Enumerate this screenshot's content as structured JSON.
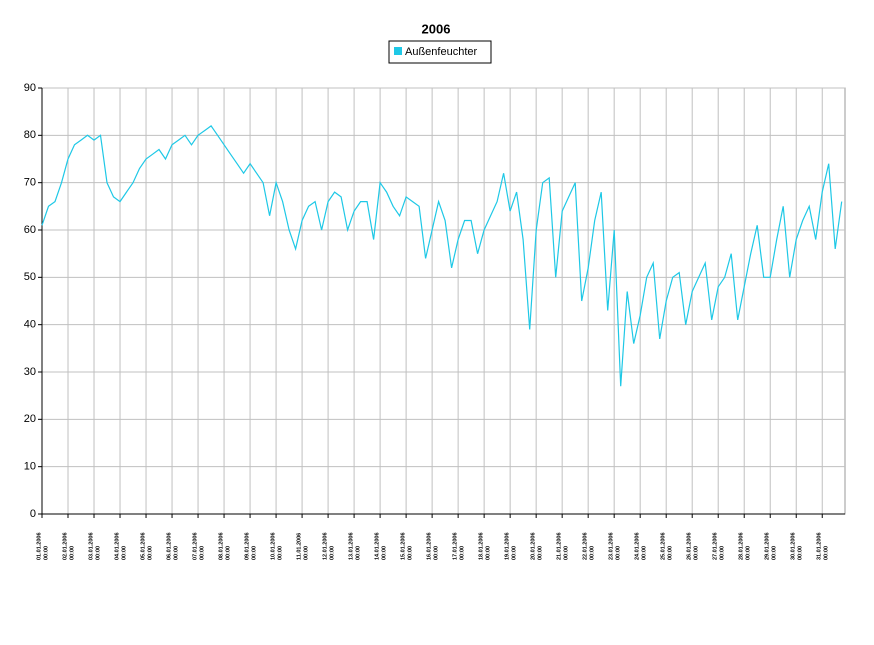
{
  "chart_data": {
    "type": "line",
    "title": "2006",
    "x": [
      "01.01.2006 00:00",
      "01.01.2006 06:00",
      "01.01.2006 12:00",
      "01.01.2006 18:00",
      "02.01.2006 00:00",
      "02.01.2006 06:00",
      "02.01.2006 12:00",
      "02.01.2006 18:00",
      "03.01.2006 00:00",
      "03.01.2006 06:00",
      "03.01.2006 12:00",
      "03.01.2006 18:00",
      "04.01.2006 00:00",
      "04.01.2006 06:00",
      "04.01.2006 12:00",
      "04.01.2006 18:00",
      "05.01.2006 00:00",
      "05.01.2006 06:00",
      "05.01.2006 12:00",
      "05.01.2006 18:00",
      "06.01.2006 00:00",
      "06.01.2006 06:00",
      "06.01.2006 12:00",
      "06.01.2006 18:00",
      "07.01.2006 00:00",
      "07.01.2006 06:00",
      "07.01.2006 12:00",
      "07.01.2006 18:00",
      "08.01.2006 00:00",
      "08.01.2006 06:00",
      "08.01.2006 12:00",
      "08.01.2006 18:00",
      "09.01.2006 00:00",
      "09.01.2006 06:00",
      "09.01.2006 12:00",
      "09.01.2006 18:00",
      "10.01.2006 00:00",
      "10.01.2006 06:00",
      "10.01.2006 12:00",
      "10.01.2006 18:00",
      "11.01.2006 00:00",
      "11.01.2006 06:00",
      "11.01.2006 12:00",
      "11.01.2006 18:00",
      "12.01.2006 00:00",
      "12.01.2006 06:00",
      "12.01.2006 12:00",
      "12.01.2006 18:00",
      "13.01.2006 00:00",
      "13.01.2006 06:00",
      "13.01.2006 12:00",
      "13.01.2006 18:00",
      "14.01.2006 00:00",
      "14.01.2006 06:00",
      "14.01.2006 12:00",
      "14.01.2006 18:00",
      "15.01.2006 00:00",
      "15.01.2006 06:00",
      "15.01.2006 12:00",
      "15.01.2006 18:00",
      "16.01.2006 00:00",
      "16.01.2006 06:00",
      "16.01.2006 12:00",
      "16.01.2006 18:00",
      "17.01.2006 00:00",
      "17.01.2006 06:00",
      "17.01.2006 12:00",
      "17.01.2006 18:00",
      "18.01.2006 00:00",
      "18.01.2006 06:00",
      "18.01.2006 12:00",
      "18.01.2006 18:00",
      "19.01.2006 00:00",
      "19.01.2006 06:00",
      "19.01.2006 12:00",
      "19.01.2006 18:00",
      "20.01.2006 00:00",
      "20.01.2006 06:00",
      "20.01.2006 12:00",
      "20.01.2006 18:00",
      "21.01.2006 00:00",
      "21.01.2006 06:00",
      "21.01.2006 12:00",
      "21.01.2006 18:00",
      "22.01.2006 00:00",
      "22.01.2006 06:00",
      "22.01.2006 12:00",
      "22.01.2006 18:00",
      "23.01.2006 00:00",
      "23.01.2006 06:00",
      "23.01.2006 12:00",
      "23.01.2006 18:00",
      "24.01.2006 00:00",
      "24.01.2006 06:00",
      "24.01.2006 12:00",
      "24.01.2006 18:00",
      "25.01.2006 00:00",
      "25.01.2006 06:00",
      "25.01.2006 12:00",
      "25.01.2006 18:00",
      "26.01.2006 00:00",
      "26.01.2006 06:00",
      "26.01.2006 12:00",
      "26.01.2006 18:00",
      "27.01.2006 00:00",
      "27.01.2006 06:00",
      "27.01.2006 12:00",
      "27.01.2006 18:00",
      "28.01.2006 00:00",
      "28.01.2006 06:00",
      "28.01.2006 12:00",
      "28.01.2006 18:00",
      "29.01.2006 00:00",
      "29.01.2006 06:00",
      "29.01.2006 12:00",
      "29.01.2006 18:00",
      "30.01.2006 00:00",
      "30.01.2006 06:00",
      "30.01.2006 12:00",
      "30.01.2006 18:00",
      "31.01.2006 00:00",
      "31.01.2006 06:00",
      "31.01.2006 12:00",
      "31.01.2006 18:00"
    ],
    "series": [
      {
        "name": "Außenfeuchter",
        "color": "#1ec8e6",
        "values": [
          61,
          65,
          66,
          70,
          75,
          78,
          79,
          80,
          79,
          80,
          70,
          67,
          66,
          68,
          70,
          73,
          75,
          76,
          77,
          75,
          78,
          79,
          80,
          78,
          80,
          81,
          82,
          80,
          78,
          76,
          74,
          72,
          74,
          72,
          70,
          63,
          70,
          66,
          60,
          56,
          62,
          65,
          66,
          60,
          66,
          68,
          67,
          60,
          64,
          66,
          66,
          58,
          70,
          68,
          65,
          63,
          67,
          66,
          65,
          54,
          60,
          66,
          62,
          52,
          58,
          62,
          62,
          55,
          60,
          63,
          66,
          72,
          64,
          68,
          58,
          39,
          60,
          70,
          71,
          50,
          64,
          67,
          70,
          45,
          52,
          62,
          68,
          43,
          60,
          27,
          47,
          36,
          42,
          50,
          53,
          37,
          45,
          50,
          51,
          40,
          47,
          50,
          53,
          41,
          48,
          50,
          55,
          41,
          48,
          55,
          61,
          50,
          50,
          58,
          65,
          50,
          58,
          62,
          65,
          58,
          68,
          74,
          56,
          66
        ]
      }
    ],
    "xlim": [
      "01.01.2006 00:00",
      "31.01.2006 21:00"
    ],
    "xticks": [
      {
        "date": "01.01.2006",
        "time": "00:00"
      },
      {
        "date": "02.01.2006",
        "time": "00:00"
      },
      {
        "date": "03.01.2006",
        "time": "00:00"
      },
      {
        "date": "04.01.2006",
        "time": "00:00"
      },
      {
        "date": "05.01.2006",
        "time": "00:00"
      },
      {
        "date": "06.01.2006",
        "time": "00:00"
      },
      {
        "date": "07.01.2006",
        "time": "00:00"
      },
      {
        "date": "08.01.2006",
        "time": "00:00"
      },
      {
        "date": "09.01.2006",
        "time": "00:00"
      },
      {
        "date": "10.01.2006",
        "time": "00:00"
      },
      {
        "date": "11.01.2006",
        "time": "00:00"
      },
      {
        "date": "12.01.2006",
        "time": "00:00"
      },
      {
        "date": "13.01.2006",
        "time": "00:00"
      },
      {
        "date": "14.01.2006",
        "time": "00:00"
      },
      {
        "date": "15.01.2006",
        "time": "00:00"
      },
      {
        "date": "16.01.2006",
        "time": "00:00"
      },
      {
        "date": "17.01.2006",
        "time": "00:00"
      },
      {
        "date": "18.01.2006",
        "time": "00:00"
      },
      {
        "date": "19.01.2006",
        "time": "00:00"
      },
      {
        "date": "20.01.2006",
        "time": "00:00"
      },
      {
        "date": "21.01.2006",
        "time": "00:00"
      },
      {
        "date": "22.01.2006",
        "time": "00:00"
      },
      {
        "date": "23.01.2006",
        "time": "00:00"
      },
      {
        "date": "24.01.2006",
        "time": "00:00"
      },
      {
        "date": "25.01.2006",
        "time": "00:00"
      },
      {
        "date": "26.01.2006",
        "time": "00:00"
      },
      {
        "date": "27.01.2006",
        "time": "00:00"
      },
      {
        "date": "28.01.2006",
        "time": "00:00"
      },
      {
        "date": "29.01.2006",
        "time": "00:00"
      },
      {
        "date": "30.01.2006",
        "time": "00:00"
      },
      {
        "date": "31.01.2006",
        "time": "00:00"
      }
    ],
    "ylim": [
      0,
      90
    ],
    "yticks": [
      0,
      10,
      20,
      30,
      40,
      50,
      60,
      70,
      80,
      90
    ],
    "grid": true
  }
}
